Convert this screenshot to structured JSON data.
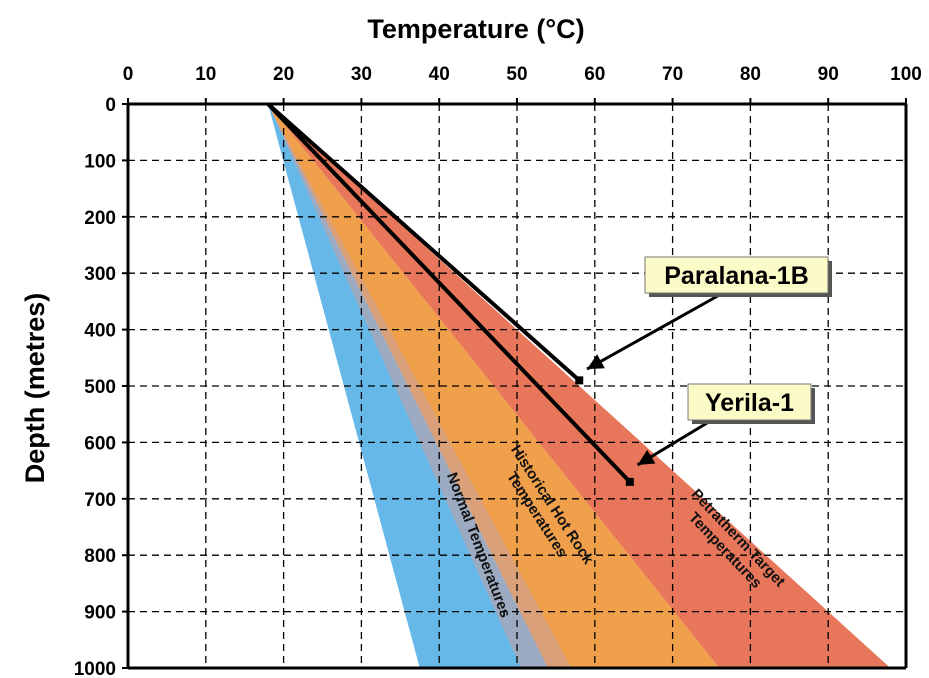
{
  "chart_data": {
    "type": "line",
    "title": "",
    "xlabel": "Temperature (°C)",
    "ylabel": "Depth (metres)",
    "xlim": [
      0,
      100
    ],
    "ylim": [
      0,
      1000
    ],
    "x_ticks": [
      "0",
      "10",
      "20",
      "30",
      "40",
      "50",
      "60",
      "70",
      "80",
      "90",
      "100"
    ],
    "y_ticks": [
      "0",
      "100",
      "200",
      "300",
      "400",
      "500",
      "600",
      "700",
      "800",
      "900",
      "1000"
    ],
    "x_axis_position": "top",
    "y_axis_inverted": true,
    "grid": true,
    "bands": [
      {
        "label": "Normal Temperatures",
        "color": "#66b8e9",
        "polygon": [
          [
            18,
            0
          ],
          [
            37.5,
            1000
          ],
          [
            54,
            1000
          ]
        ]
      },
      {
        "label": "Historical Hot Rock Temperatures",
        "color": "#f0a04a",
        "polygon": [
          [
            18,
            0
          ],
          [
            54,
            1000
          ],
          [
            76,
            1000
          ]
        ]
      },
      {
        "label": "Petratherm Target Temperatures",
        "color": "#e8765a",
        "polygon": [
          [
            18,
            0
          ],
          [
            76,
            1000
          ],
          [
            98,
            1000
          ]
        ]
      }
    ],
    "series": [
      {
        "name": "Paralana-1B",
        "x": [
          18,
          58
        ],
        "y": [
          0,
          490
        ]
      },
      {
        "name": "Yerila-1",
        "x": [
          18,
          64.5
        ],
        "y": [
          0,
          670
        ]
      }
    ],
    "callouts": [
      {
        "text": "Paralana-1B",
        "points_to": [
          59,
          470
        ]
      },
      {
        "text": "Yerila-1",
        "points_to": [
          65.5,
          640
        ]
      }
    ]
  }
}
